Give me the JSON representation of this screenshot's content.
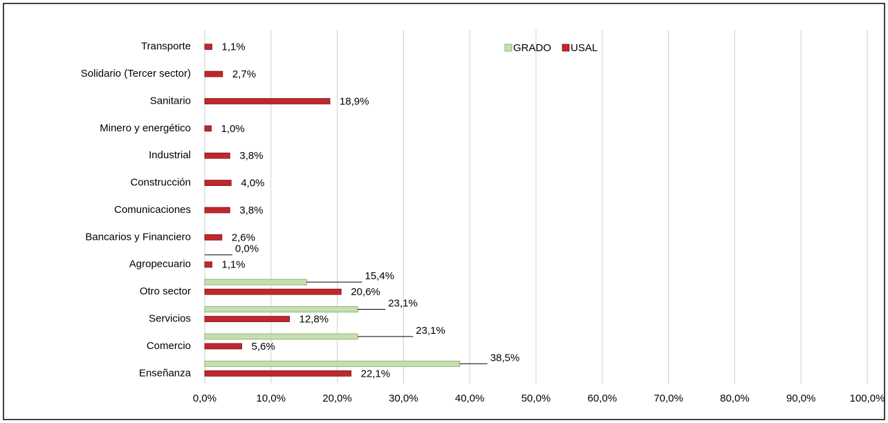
{
  "chart_data": {
    "type": "bar",
    "orientation": "horizontal",
    "categories": [
      "Transporte",
      "Solidario (Tercer sector)",
      "Sanitario",
      "Minero y energético",
      "Industrial",
      "Construcción",
      "Comunicaciones",
      "Bancarios y Financiero",
      "Agropecuario",
      "Otro sector",
      "Servicios",
      "Comercio",
      "Enseñanza"
    ],
    "series": [
      {
        "name": "GRADO",
        "color": "#c5dfb0",
        "values": [
          null,
          null,
          null,
          null,
          null,
          null,
          null,
          null,
          0.0,
          15.4,
          23.1,
          23.1,
          38.5
        ],
        "value_labels": [
          null,
          null,
          null,
          null,
          null,
          null,
          null,
          null,
          "0,0%",
          "15,4%",
          "23,1%",
          "23,1%",
          "38,5%"
        ]
      },
      {
        "name": "USAL",
        "color": "#c0272d",
        "values": [
          1.1,
          2.7,
          18.9,
          1.0,
          3.8,
          4.0,
          3.8,
          2.6,
          1.1,
          20.6,
          12.8,
          5.6,
          22.1
        ],
        "value_labels": [
          "1,1%",
          "2,7%",
          "18,9%",
          "1,0%",
          "3,8%",
          "4,0%",
          "3,8%",
          "2,6%",
          "1,1%",
          "20,6%",
          "12,8%",
          "5,6%",
          "22,1%"
        ]
      }
    ],
    "xlim": [
      0,
      100
    ],
    "xticks": [
      {
        "value": 0,
        "label": "0,0%"
      },
      {
        "value": 10,
        "label": "10,0%"
      },
      {
        "value": 20,
        "label": "20,0%"
      },
      {
        "value": 30,
        "label": "30,0%"
      },
      {
        "value": 40,
        "label": "40,0%"
      },
      {
        "value": 50,
        "label": "50,0%"
      },
      {
        "value": 60,
        "label": "60,0%"
      },
      {
        "value": 70,
        "label": "70,0%"
      },
      {
        "value": 80,
        "label": "80,0%"
      },
      {
        "value": 90,
        "label": "90,0%"
      },
      {
        "value": 100,
        "label": "100,0%"
      }
    ],
    "grid": true,
    "legend": "top"
  }
}
